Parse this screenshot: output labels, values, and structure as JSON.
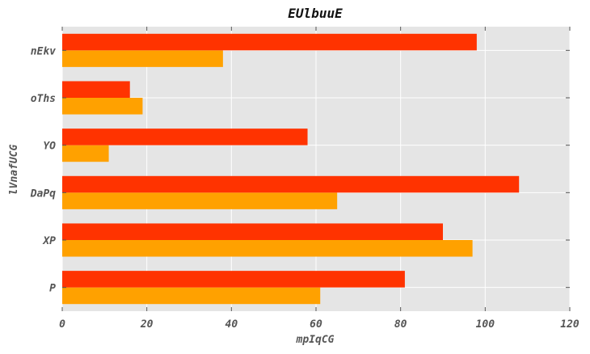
{
  "chart_data": {
    "type": "bar",
    "orientation": "horizontal",
    "title": "EUlbuuE",
    "xlabel": "mpIqCG",
    "ylabel": "lVnafUCG",
    "categories": [
      "P",
      "XP",
      "DaPq",
      "YO",
      "oThs",
      "nEkv"
    ],
    "series": [
      {
        "color": "#ffa100",
        "values": [
          61,
          97,
          65,
          11,
          19,
          38
        ]
      },
      {
        "color": "#ff3300",
        "values": [
          81,
          90,
          108,
          58,
          16,
          98
        ]
      }
    ],
    "xlim": [
      0,
      120
    ],
    "xticks": [
      0,
      20,
      40,
      60,
      80,
      100,
      120
    ],
    "grid": true,
    "legend": "none",
    "plot_background": "#e5e5e5"
  }
}
